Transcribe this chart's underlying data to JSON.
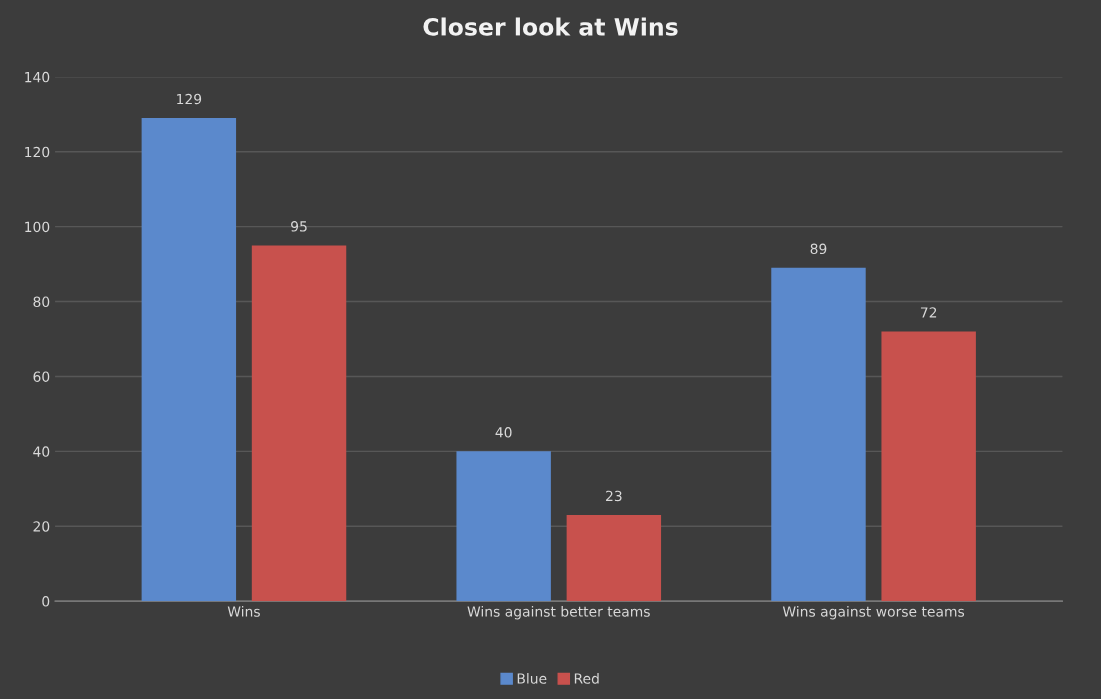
{
  "chart_data": {
    "type": "bar",
    "title": "Closer look at Wins",
    "categories": [
      "Wins",
      "Wins against better teams",
      "Wins against worse teams"
    ],
    "series": [
      {
        "name": "Blue",
        "color": "#5b89cc",
        "values": [
          129,
          40,
          89
        ]
      },
      {
        "name": "Red",
        "color": "#c8514d",
        "values": [
          95,
          23,
          72
        ]
      }
    ],
    "ylim": [
      0,
      140
    ],
    "yticks": [
      0,
      20,
      40,
      60,
      80,
      100,
      120,
      140
    ],
    "grid": "y",
    "legend": "bottom",
    "data_labels": true
  }
}
